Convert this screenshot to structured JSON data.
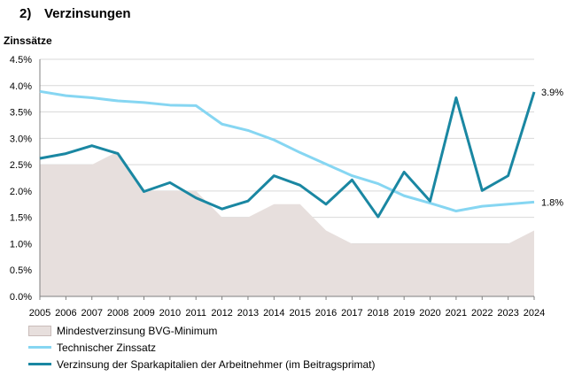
{
  "section": {
    "number": "2)",
    "title": "Verzinsungen"
  },
  "chart_data": {
    "type": "line",
    "ylabel": "Zinssätze",
    "xlabel": "",
    "title": "",
    "ylim": [
      0,
      4.5
    ],
    "yticks": [
      "0.0%",
      "0.5%",
      "1.0%",
      "1.5%",
      "2.0%",
      "2.5%",
      "3.0%",
      "3.5%",
      "4.0%",
      "4.5%"
    ],
    "x": [
      "2005",
      "2006",
      "2007",
      "2008",
      "2009",
      "2010",
      "2011",
      "2012",
      "2013",
      "2014",
      "2015",
      "2016",
      "2017",
      "2018",
      "2019",
      "2020",
      "2021",
      "2022",
      "2023",
      "2024"
    ],
    "grid": true,
    "series": [
      {
        "name": "Mindestverzinsung BVG-Minimum",
        "type": "area",
        "color": "#e7dfdd",
        "values": [
          2.5,
          2.5,
          2.5,
          2.75,
          2.0,
          2.0,
          2.0,
          1.5,
          1.5,
          1.75,
          1.75,
          1.25,
          1.0,
          1.0,
          1.0,
          1.0,
          1.0,
          1.0,
          1.0,
          1.25
        ]
      },
      {
        "name": "Technischer Zinssatz",
        "type": "line",
        "color": "#86d6f2",
        "values": [
          3.89,
          3.81,
          3.77,
          3.71,
          3.68,
          3.63,
          3.62,
          3.27,
          3.15,
          2.97,
          2.73,
          2.51,
          2.29,
          2.14,
          1.91,
          1.77,
          1.62,
          1.71,
          1.75,
          1.79
        ]
      },
      {
        "name": "Verzinsung der Sparkapitalien der Arbeitnehmer (im Beitragsprimat)",
        "type": "line",
        "color": "#1a87a2",
        "values": [
          2.62,
          2.71,
          2.86,
          2.71,
          1.99,
          2.16,
          1.87,
          1.66,
          1.81,
          2.29,
          2.11,
          1.75,
          2.21,
          1.51,
          2.36,
          1.81,
          3.77,
          2.01,
          2.29,
          3.88
        ]
      }
    ],
    "annotations": [
      {
        "series": 2,
        "index": 19,
        "text": "3.9%"
      },
      {
        "series": 1,
        "index": 19,
        "text": "1.8%"
      }
    ],
    "legend": "bottom-left"
  }
}
